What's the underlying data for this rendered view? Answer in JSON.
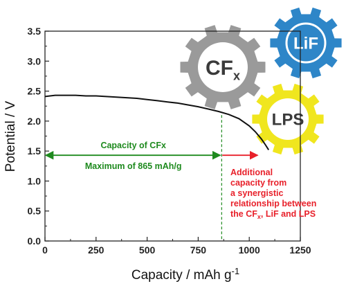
{
  "chart_data": {
    "type": "line",
    "xlabel_main": "Capacity / mAh g",
    "xlabel_sup": "-1",
    "ylabel": "Potential / V",
    "xlim": [
      0,
      1250
    ],
    "ylim": [
      0.0,
      3.5
    ],
    "x_ticks": [
      "0",
      "250",
      "500",
      "750",
      "1000",
      "1250"
    ],
    "y_ticks": [
      "0.0",
      "0.5",
      "1.0",
      "1.5",
      "2.0",
      "2.5",
      "3.0",
      "3.5"
    ],
    "grid": false,
    "series": [
      {
        "color": "#111111",
        "x": [
          0,
          25,
          50,
          100,
          150,
          200,
          250,
          300,
          350,
          400,
          450,
          500,
          550,
          600,
          650,
          700,
          750,
          800,
          850,
          900,
          950,
          1000,
          1030,
          1060,
          1080,
          1095
        ],
        "y": [
          2.41,
          2.42,
          2.43,
          2.43,
          2.43,
          2.42,
          2.42,
          2.41,
          2.4,
          2.39,
          2.38,
          2.36,
          2.34,
          2.32,
          2.3,
          2.27,
          2.24,
          2.2,
          2.16,
          2.11,
          2.04,
          1.92,
          1.82,
          1.7,
          1.6,
          1.52
        ]
      }
    ],
    "annotations": {
      "cfx_limit_x": 865,
      "arrow_y": 1.43,
      "green_line1": "Capacity of CFx",
      "green_line2": "Maximum of 865 mAh/g",
      "red_lines": [
        "Additional",
        "capacity from",
        "a synergistic",
        "relationship between"
      ],
      "red_last_prefix": "the CF",
      "red_last_sub": "x",
      "red_last_suffix": ", LiF and LPS",
      "green_color": "#1e8a1e",
      "red_color": "#e8202a"
    },
    "gears": [
      {
        "label": "CF",
        "sub": "x",
        "color": "#9a9a9a"
      },
      {
        "label": "LiF",
        "sub": "",
        "color": "#2e86c8"
      },
      {
        "label": "LPS",
        "sub": "",
        "color": "#f0e61e"
      }
    ]
  }
}
